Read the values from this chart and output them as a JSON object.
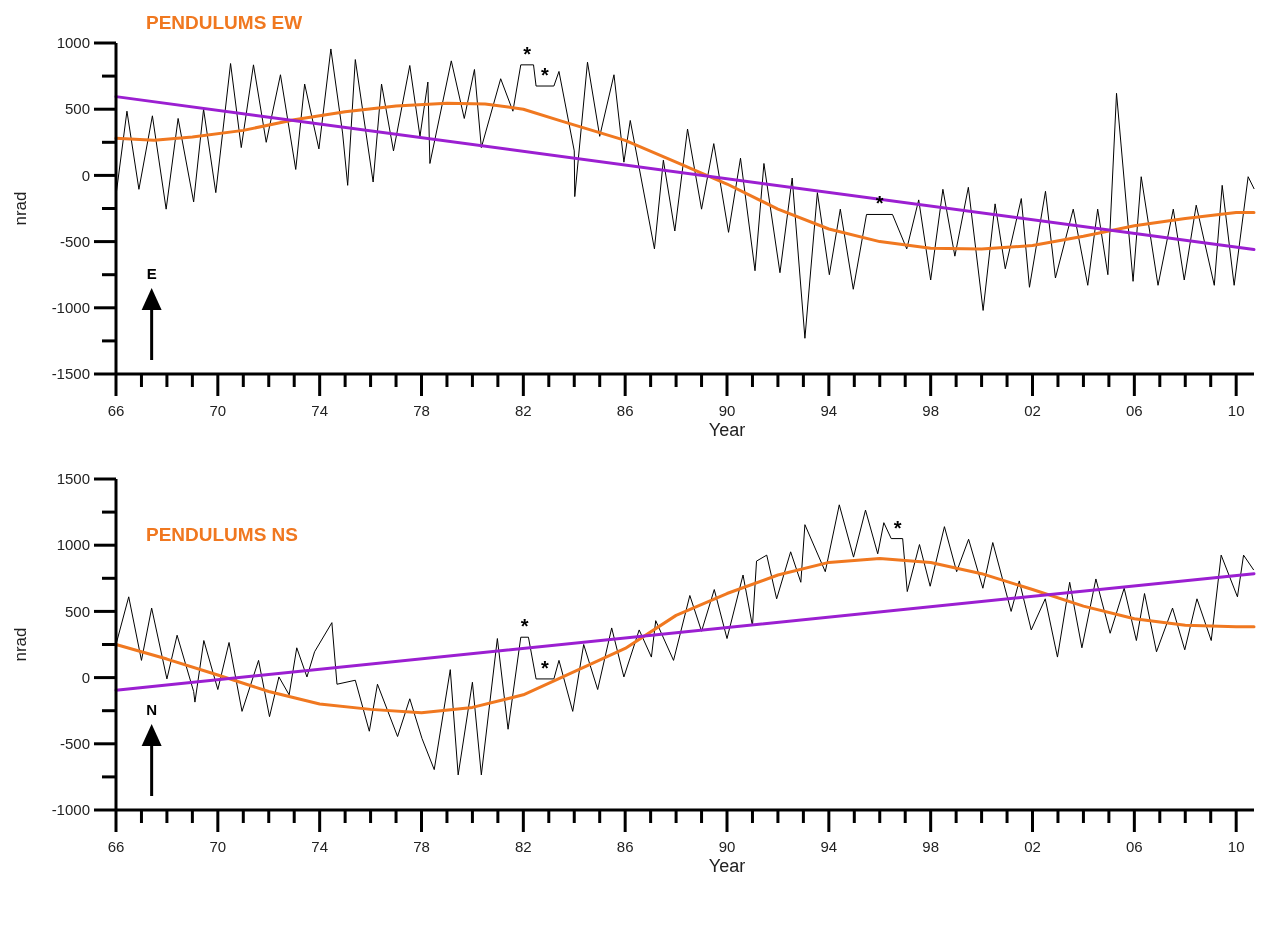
{
  "chart_data": [
    {
      "type": "line",
      "title": "PENDULUMS EW",
      "xlabel": "Year",
      "ylabel": "nrad",
      "xlim": [
        1966,
        2010.7
      ],
      "ylim": [
        -1500,
        1000
      ],
      "xticks": [
        {
          "value": 1966,
          "label": "66"
        },
        {
          "value": 1967,
          "label": null
        },
        {
          "value": 1968,
          "label": null
        },
        {
          "value": 1969,
          "label": null
        },
        {
          "value": 1970,
          "label": "70"
        },
        {
          "value": 1971,
          "label": null
        },
        {
          "value": 1972,
          "label": null
        },
        {
          "value": 1973,
          "label": null
        },
        {
          "value": 1974,
          "label": "74"
        },
        {
          "value": 1975,
          "label": null
        },
        {
          "value": 1976,
          "label": null
        },
        {
          "value": 1977,
          "label": null
        },
        {
          "value": 1978,
          "label": "78"
        },
        {
          "value": 1979,
          "label": null
        },
        {
          "value": 1980,
          "label": null
        },
        {
          "value": 1981,
          "label": null
        },
        {
          "value": 1982,
          "label": "82"
        },
        {
          "value": 1983,
          "label": null
        },
        {
          "value": 1984,
          "label": null
        },
        {
          "value": 1985,
          "label": null
        },
        {
          "value": 1986,
          "label": "86"
        },
        {
          "value": 1987,
          "label": null
        },
        {
          "value": 1988,
          "label": null
        },
        {
          "value": 1989,
          "label": null
        },
        {
          "value": 1990,
          "label": "90"
        },
        {
          "value": 1991,
          "label": null
        },
        {
          "value": 1992,
          "label": null
        },
        {
          "value": 1993,
          "label": null
        },
        {
          "value": 1994,
          "label": "94"
        },
        {
          "value": 1995,
          "label": null
        },
        {
          "value": 1996,
          "label": null
        },
        {
          "value": 1997,
          "label": null
        },
        {
          "value": 1998,
          "label": "98"
        },
        {
          "value": 1999,
          "label": null
        },
        {
          "value": 2000,
          "label": null
        },
        {
          "value": 2001,
          "label": null
        },
        {
          "value": 2002,
          "label": "02"
        },
        {
          "value": 2003,
          "label": null
        },
        {
          "value": 2004,
          "label": null
        },
        {
          "value": 2005,
          "label": null
        },
        {
          "value": 2006,
          "label": "06"
        },
        {
          "value": 2007,
          "label": null
        },
        {
          "value": 2008,
          "label": null
        },
        {
          "value": 2009,
          "label": null
        },
        {
          "value": 2010,
          "label": "10"
        }
      ],
      "yticks": [
        -1500,
        {
          "value": -1250,
          "label": null
        },
        -1000,
        {
          "value": -750,
          "label": null
        },
        -500,
        {
          "value": -250,
          "label": null
        },
        0,
        {
          "value": 250,
          "label": null
        },
        500,
        {
          "value": 750,
          "label": null
        },
        1000
      ],
      "annotations": [
        "E",
        {
          "text": "*",
          "x": 1982.15,
          "y": 835
        },
        {
          "text": "*",
          "x": 1982.85,
          "y": 675
        },
        {
          "text": "*",
          "x": 1996,
          "y": -295
        }
      ],
      "series": [
        {
          "color": "#000000",
          "x": [
            1966,
            1966.43,
            1966.9,
            1967.43,
            1967.97,
            1968.44,
            1969.05,
            1969.44,
            1969.92,
            1970.5,
            1970.92,
            1971.4,
            1971.9,
            1972.46,
            1973.06,
            1973.41,
            1973.97,
            1974.44,
            1974.9,
            1975.1,
            1975.4,
            1976.1,
            1976.43,
            1976.9,
            1977.54,
            1977.94,
            1978.25,
            1978.33,
            1979.17,
            1979.68,
            1980.08,
            1980.35,
            1981.11,
            1981.59,
            1981.9,
            1982.4,
            1982.5,
            1983.2,
            1983.4,
            1984,
            1984.02,
            1984.52,
            1985,
            1985.56,
            1985.95,
            1986.2,
            1987.15,
            1987.5,
            1987.95,
            1988.45,
            1989,
            1989.48,
            1990.06,
            1990.53,
            1991.1,
            1991.45,
            1992.08,
            1992.56,
            1993.06,
            1993.55,
            1994.02,
            1994.45,
            1994.96,
            1995.48,
            1996.5,
            1997.06,
            1997.53,
            1998,
            1998.48,
            1998.95,
            1999.48,
            2000.06,
            2000.53,
            2000.93,
            2001.56,
            2001.88,
            2002.51,
            2002.9,
            2003.6,
            2004.17,
            2004.56,
            2004.96,
            2005.3,
            2005.95,
            2006.27,
            2006.93,
            2007.53,
            2007.96,
            2008.43,
            2009.14,
            2009.45,
            2009.92,
            2010.47,
            2010.7
          ],
          "values": [
            -150,
            485,
            -105,
            450,
            -255,
            430,
            -200,
            500,
            -130,
            845,
            210,
            835,
            250,
            760,
            45,
            690,
            200,
            955,
            320,
            -75,
            875,
            -50,
            690,
            185,
            830,
            295,
            705,
            90,
            865,
            430,
            800,
            210,
            730,
            485,
            835,
            835,
            675,
            675,
            785,
            185,
            -160,
            855,
            295,
            760,
            100,
            415,
            -555,
            115,
            -420,
            350,
            -255,
            240,
            -430,
            130,
            -720,
            90,
            -735,
            -20,
            -1230,
            -130,
            -750,
            -255,
            -860,
            -295,
            -295,
            -555,
            -185,
            -790,
            -105,
            -610,
            -90,
            -1020,
            -215,
            -705,
            -175,
            -845,
            -120,
            -775,
            -255,
            -830,
            -255,
            -750,
            620,
            -800,
            -10,
            -830,
            -255,
            -790,
            -225,
            -830,
            -75,
            -830,
            -10,
            -100
          ]
        },
        {
          "color": "#f07820",
          "x": [
            1966,
            1967.5,
            1969,
            1971,
            1973,
            1975,
            1977,
            1979,
            1980.5,
            1982,
            1983.5,
            1986,
            1988,
            1990,
            1992,
            1994,
            1996,
            1998,
            2000,
            2002,
            2004,
            2006,
            2008,
            2010,
            2010.7
          ],
          "values": [
            280,
            265,
            290,
            340,
            420,
            480,
            525,
            545,
            540,
            500,
            410,
            265,
            100,
            -65,
            -255,
            -405,
            -500,
            -550,
            -555,
            -530,
            -460,
            -380,
            -325,
            -280,
            -280
          ]
        },
        {
          "color": "#9b1fd1",
          "x": [
            1966,
            2010.7
          ],
          "values": [
            595,
            -560
          ]
        }
      ]
    },
    {
      "type": "line",
      "title": "PENDULUMS NS",
      "xlabel": "Year",
      "ylabel": "nrad",
      "xlim": [
        1966,
        2010.7
      ],
      "ylim": [
        -1000,
        1500
      ],
      "xticks": [
        {
          "value": 1966,
          "label": "66"
        },
        {
          "value": 1967,
          "label": null
        },
        {
          "value": 1968,
          "label": null
        },
        {
          "value": 1969,
          "label": null
        },
        {
          "value": 1970,
          "label": "70"
        },
        {
          "value": 1971,
          "label": null
        },
        {
          "value": 1972,
          "label": null
        },
        {
          "value": 1973,
          "label": null
        },
        {
          "value": 1974,
          "label": "74"
        },
        {
          "value": 1975,
          "label": null
        },
        {
          "value": 1976,
          "label": null
        },
        {
          "value": 1977,
          "label": null
        },
        {
          "value": 1978,
          "label": "78"
        },
        {
          "value": 1979,
          "label": null
        },
        {
          "value": 1980,
          "label": null
        },
        {
          "value": 1981,
          "label": null
        },
        {
          "value": 1982,
          "label": "82"
        },
        {
          "value": 1983,
          "label": null
        },
        {
          "value": 1984,
          "label": null
        },
        {
          "value": 1985,
          "label": null
        },
        {
          "value": 1986,
          "label": "86"
        },
        {
          "value": 1987,
          "label": null
        },
        {
          "value": 1988,
          "label": null
        },
        {
          "value": 1989,
          "label": null
        },
        {
          "value": 1990,
          "label": "90"
        },
        {
          "value": 1991,
          "label": null
        },
        {
          "value": 1992,
          "label": null
        },
        {
          "value": 1993,
          "label": null
        },
        {
          "value": 1994,
          "label": "94"
        },
        {
          "value": 1995,
          "label": null
        },
        {
          "value": 1996,
          "label": null
        },
        {
          "value": 1997,
          "label": null
        },
        {
          "value": 1998,
          "label": "98"
        },
        {
          "value": 1999,
          "label": null
        },
        {
          "value": 2000,
          "label": null
        },
        {
          "value": 2001,
          "label": null
        },
        {
          "value": 2002,
          "label": "02"
        },
        {
          "value": 2003,
          "label": null
        },
        {
          "value": 2004,
          "label": null
        },
        {
          "value": 2005,
          "label": null
        },
        {
          "value": 2006,
          "label": "06"
        },
        {
          "value": 2007,
          "label": null
        },
        {
          "value": 2008,
          "label": null
        },
        {
          "value": 2009,
          "label": null
        },
        {
          "value": 2010,
          "label": "10"
        }
      ],
      "yticks": [
        -1000,
        {
          "value": -750,
          "label": null
        },
        -500,
        {
          "value": -250,
          "label": null
        },
        0,
        {
          "value": 250,
          "label": null
        },
        500,
        {
          "value": 750,
          "label": null
        },
        1000,
        {
          "value": 1250,
          "label": null
        },
        1500
      ],
      "annotations": [
        "N",
        {
          "text": "*",
          "x": 1982.05,
          "y": 305
        },
        {
          "text": "*",
          "x": 1982.85,
          "y": -10
        },
        {
          "text": "*",
          "x": 1996.7,
          "y": 1050
        }
      ],
      "series": [
        {
          "color": "#000000",
          "x": [
            1966,
            1966.5,
            1967,
            1967.4,
            1968,
            1968.4,
            1969.05,
            1969.1,
            1969.45,
            1970,
            1970.44,
            1970.95,
            1971.6,
            1972.03,
            1972.4,
            1972.8,
            1973.1,
            1973.5,
            1973.8,
            1974.48,
            1974.68,
            1975.4,
            1975.95,
            1976.27,
            1977.06,
            1977.54,
            1978.02,
            1978.5,
            1979.13,
            1979.44,
            1980,
            1980.35,
            1980.98,
            1981.4,
            1981.9,
            1982.2,
            1982.5,
            1983.2,
            1983.4,
            1983.94,
            1984.37,
            1984.92,
            1985.47,
            1985.95,
            1986.55,
            1987.03,
            1987.2,
            1987.9,
            1988.54,
            1989,
            1989.5,
            1990,
            1990.63,
            1991,
            1991.16,
            1991.56,
            1991.95,
            1992.5,
            1992.9,
            1993.06,
            1993.86,
            1994.41,
            1994.97,
            1995.44,
            1995.92,
            1996.16,
            1996.45,
            1996.9,
            1997.08,
            1997.56,
            1997.98,
            1998.54,
            1999.02,
            1999.49,
            2000.05,
            2000.44,
            2001.16,
            2001.48,
            2001.95,
            2002.5,
            2002.98,
            2003.46,
            2003.94,
            2004.49,
            2005.05,
            2005.6,
            2006.08,
            2006.4,
            2006.87,
            2007.5,
            2007.98,
            2008.46,
            2009.02,
            2009.41,
            2010.05,
            2010.29,
            2010.68
          ],
          "values": [
            250,
            610,
            130,
            525,
            -10,
            320,
            -105,
            -185,
            280,
            -90,
            265,
            -255,
            130,
            -295,
            5,
            -130,
            225,
            5,
            195,
            415,
            -50,
            -20,
            -405,
            -50,
            -445,
            -160,
            -460,
            -695,
            60,
            -735,
            -35,
            -735,
            295,
            -390,
            305,
            305,
            -10,
            -10,
            130,
            -255,
            250,
            -90,
            375,
            5,
            360,
            155,
            430,
            130,
            620,
            350,
            665,
            295,
            775,
            390,
            880,
            925,
            595,
            950,
            720,
            1155,
            800,
            1305,
            910,
            1265,
            935,
            1170,
            1050,
            1050,
            650,
            1005,
            690,
            1140,
            800,
            1045,
            675,
            1020,
            500,
            730,
            360,
            595,
            155,
            720,
            225,
            745,
            335,
            675,
            280,
            635,
            195,
            525,
            210,
            595,
            280,
            925,
            610,
            925,
            815
          ]
        },
        {
          "color": "#f07820",
          "x": [
            1966,
            1968,
            1970,
            1972,
            1974,
            1976,
            1978,
            1980,
            1982,
            1984,
            1986,
            1988,
            1990,
            1992,
            1994,
            1996,
            1998,
            2000,
            2002,
            2004,
            2006,
            2008,
            2010,
            2010.7
          ],
          "values": [
            250,
            140,
            20,
            -105,
            -200,
            -240,
            -265,
            -225,
            -130,
            45,
            220,
            470,
            635,
            775,
            870,
            900,
            870,
            785,
            665,
            540,
            445,
            395,
            385,
            385
          ]
        },
        {
          "color": "#9b1fd1",
          "x": [
            1966,
            2010.7
          ],
          "values": [
            -95,
            785
          ]
        }
      ]
    }
  ]
}
